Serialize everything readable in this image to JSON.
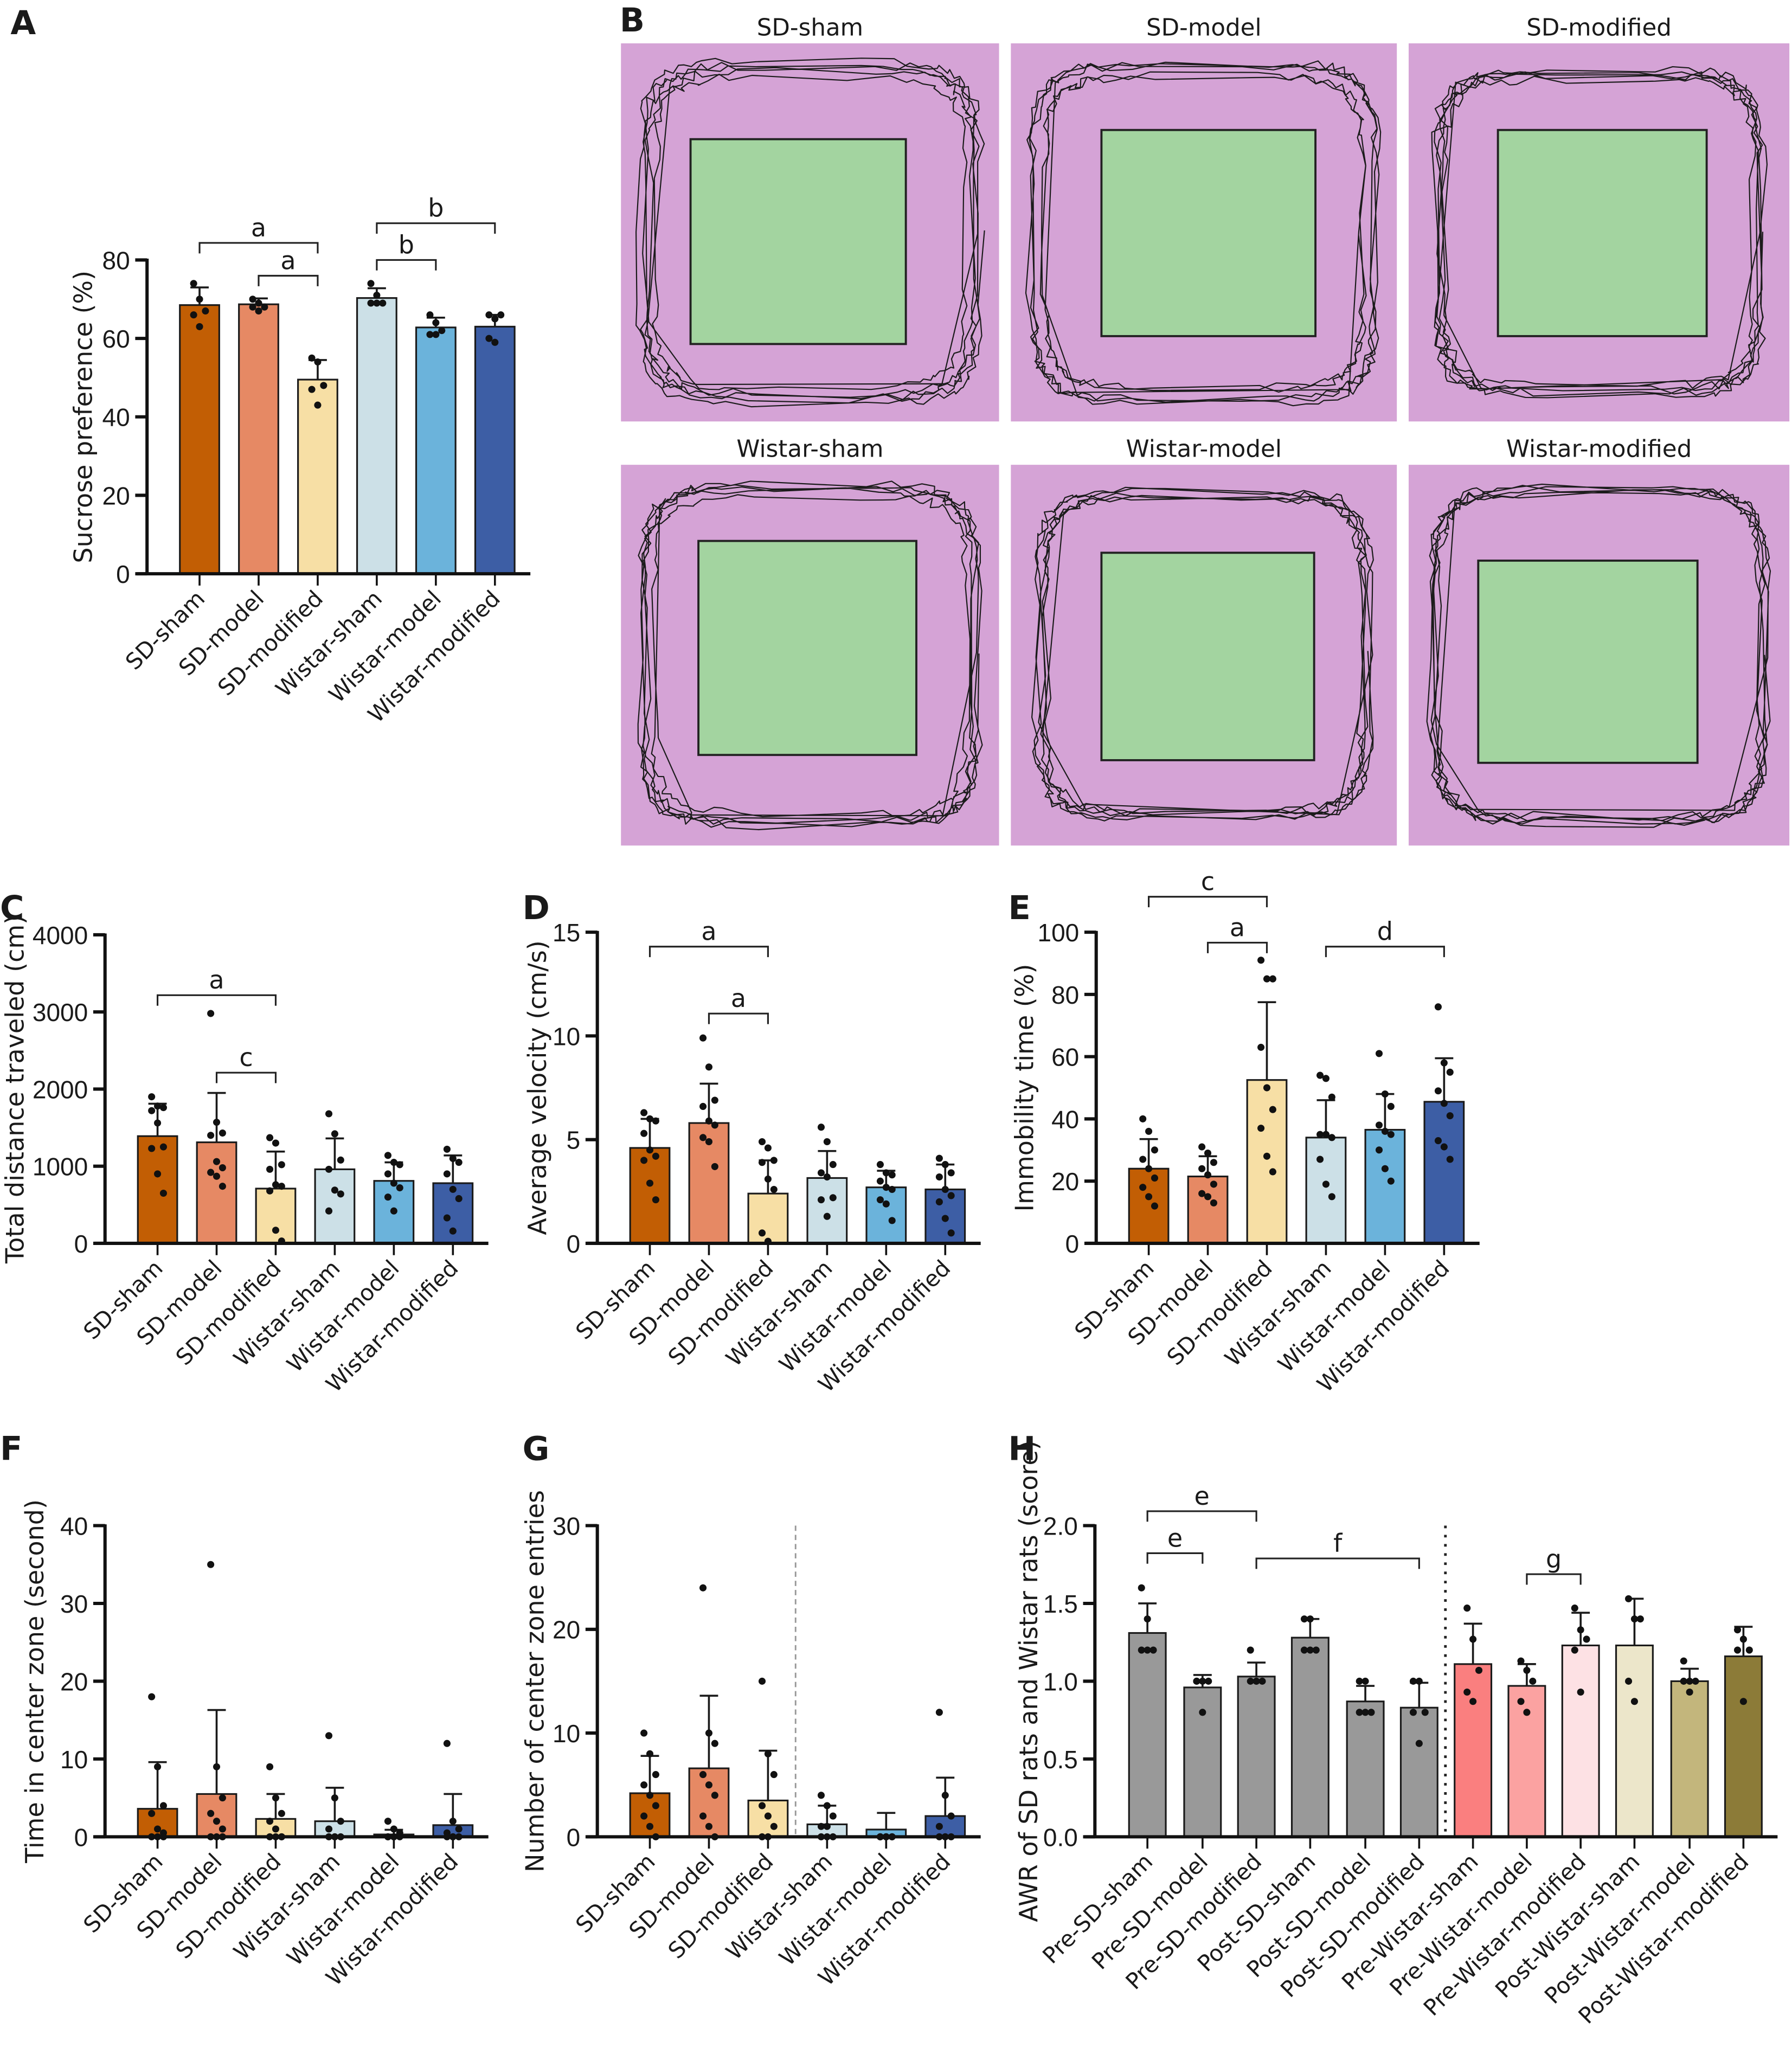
{
  "colors": {
    "SD-sham": "#C25E04",
    "SD-model": "#E68964",
    "SD-modified": "#F7DFA5",
    "Wistar-sham": "#CCE0E7",
    "Wistar-model": "#6BB3DB",
    "Wistar-modified": "#3D5EA5",
    "Pre-Wistar-sham": "#FA7F7F",
    "Pre-Wistar-model": "#FBA2A1",
    "Pre-Wistar-modified": "#FDE1E4",
    "Post-Wistar-sham": "#ECE6CA",
    "Post-Wistar-model": "#C3B67C",
    "Post-Wistar-modified": "#8C7B38",
    "arena": "#D5A3D6",
    "center_zone": "#A3D4A0"
  },
  "panel_b": {
    "label": "B",
    "arenas": [
      {
        "title": "SD-sham"
      },
      {
        "title": "SD-model"
      },
      {
        "title": "SD-modified"
      },
      {
        "title": "Wistar-sham"
      },
      {
        "title": "Wistar-model"
      },
      {
        "title": "Wistar-modified"
      }
    ]
  },
  "chart_data": [
    {
      "panel": "A",
      "type": "bar",
      "ylabel": "Sucrose preference (%)",
      "ylim": [
        0,
        80
      ],
      "yticks": [
        0,
        20,
        40,
        60,
        80
      ],
      "grid": false,
      "categories": [
        "SD-sham",
        "SD-model",
        "SD-modified",
        "Wistar-sham",
        "Wistar-model",
        "Wistar-modified"
      ],
      "means": [
        68.5,
        68.7,
        49.5,
        70.3,
        62.8,
        63.0
      ],
      "sd": [
        4.5,
        1.5,
        5.0,
        2.5,
        2.5,
        3.0
      ],
      "points": [
        [
          74,
          70,
          67,
          66,
          63
        ],
        [
          70,
          69,
          68,
          68,
          67
        ],
        [
          55,
          54,
          48,
          47,
          43
        ],
        [
          74,
          71,
          69,
          69,
          69
        ],
        [
          66,
          64,
          62,
          61,
          61
        ],
        [
          66,
          65,
          66,
          60,
          59
        ]
      ],
      "brackets": [
        {
          "from": 0,
          "to": 2,
          "label": "a"
        },
        {
          "from": 1,
          "to": 2,
          "label": "a"
        },
        {
          "from": 3,
          "to": 5,
          "label": "b"
        },
        {
          "from": 3,
          "to": 4,
          "label": "b"
        }
      ]
    },
    {
      "panel": "C",
      "type": "bar",
      "ylabel": "Total distance traveled (cm)",
      "ylim": [
        0,
        4000
      ],
      "yticks": [
        0,
        1000,
        2000,
        3000,
        4000
      ],
      "grid": false,
      "categories": [
        "SD-sham",
        "SD-model",
        "SD-modified",
        "Wistar-sham",
        "Wistar-model",
        "Wistar-modified"
      ],
      "means": [
        1390,
        1310,
        710,
        960,
        810,
        780
      ],
      "sd": [
        420,
        640,
        480,
        400,
        240,
        360
      ],
      "points": [
        [
          1900,
          1780,
          1760,
          1720,
          1560,
          1250,
          1230,
          900,
          650
        ],
        [
          2980,
          1570,
          1430,
          1400,
          1060,
          980,
          920,
          870,
          740
        ],
        [
          1370,
          1300,
          1020,
          960,
          760,
          740,
          680,
          170,
          30
        ],
        [
          1680,
          1420,
          1080,
          960,
          690,
          640,
          420
        ],
        [
          1140,
          1050,
          1020,
          900,
          780,
          720,
          600,
          420
        ],
        [
          1220,
          1100,
          1050,
          900,
          700,
          580,
          330,
          160
        ]
      ],
      "brackets": [
        {
          "from": 0,
          "to": 2,
          "label": "a"
        },
        {
          "from": 1,
          "to": 2,
          "label": "c"
        }
      ]
    },
    {
      "panel": "D",
      "type": "bar",
      "ylabel": "Average velocity (cm/s)",
      "ylim": [
        0,
        15
      ],
      "yticks": [
        0,
        5,
        10,
        15
      ],
      "grid": false,
      "categories": [
        "SD-sham",
        "SD-model",
        "SD-modified",
        "Wistar-sham",
        "Wistar-model",
        "Wistar-modified"
      ],
      "means": [
        4.6,
        5.8,
        2.4,
        3.15,
        2.7,
        2.6
      ],
      "sd": [
        1.4,
        1.9,
        1.6,
        1.3,
        0.8,
        1.2
      ],
      "points": [
        [
          6.3,
          6.0,
          5.9,
          5.3,
          4.5,
          4.2,
          4.0,
          2.9,
          2.1
        ],
        [
          9.9,
          8.5,
          6.9,
          6.6,
          5.9,
          5.7,
          5.1,
          4.9,
          3.7
        ],
        [
          4.9,
          4.6,
          4.0,
          3.9,
          3.1,
          2.6,
          0.5,
          0.1
        ],
        [
          5.6,
          4.9,
          3.8,
          3.4,
          3.2,
          2.2,
          2.1,
          1.3
        ],
        [
          3.8,
          3.4,
          3.3,
          3.0,
          2.7,
          2.6,
          2.1,
          1.9,
          1.1
        ],
        [
          4.1,
          3.8,
          3.4,
          3.2,
          2.6,
          2.3,
          2.0,
          1.2,
          0.5
        ]
      ],
      "brackets": [
        {
          "from": 0,
          "to": 2,
          "label": "a"
        },
        {
          "from": 1,
          "to": 2,
          "label": "a"
        }
      ]
    },
    {
      "panel": "E",
      "type": "bar",
      "ylabel": "Immobility time (%)",
      "ylim": [
        0,
        100
      ],
      "yticks": [
        0,
        20,
        40,
        60,
        80,
        100
      ],
      "grid": false,
      "categories": [
        "SD-sham",
        "SD-model",
        "SD-modified",
        "Wistar-sham",
        "Wistar-model",
        "Wistar-modified"
      ],
      "means": [
        24,
        21.5,
        52.5,
        34,
        36.5,
        45.5
      ],
      "sd": [
        9.5,
        6.5,
        25,
        12,
        11.5,
        14
      ],
      "points": [
        [
          40,
          36,
          30,
          27,
          24,
          21,
          18,
          15,
          12
        ],
        [
          31,
          29,
          26,
          24,
          22,
          19,
          16,
          15,
          13
        ],
        [
          91,
          85,
          85,
          63,
          50,
          43,
          37,
          28,
          23
        ],
        [
          54,
          53,
          47,
          35,
          35,
          34,
          27,
          19,
          15
        ],
        [
          61,
          48,
          44,
          38,
          36,
          35,
          30,
          24,
          20
        ],
        [
          76,
          58,
          55,
          49,
          45,
          41,
          33,
          31,
          27
        ]
      ],
      "brackets": [
        {
          "from": 0,
          "to": 2,
          "label": "c"
        },
        {
          "from": 1,
          "to": 2,
          "label": "a"
        },
        {
          "from": 3,
          "to": 5,
          "label": "d"
        }
      ]
    },
    {
      "panel": "F",
      "type": "bar",
      "ylabel": "Time in center zone (second)",
      "ylim": [
        0,
        40
      ],
      "yticks": [
        0,
        10,
        20,
        30,
        40
      ],
      "grid": false,
      "categories": [
        "SD-sham",
        "SD-model",
        "SD-modified",
        "Wistar-sham",
        "Wistar-model",
        "Wistar-modified"
      ],
      "means": [
        3.6,
        5.5,
        2.3,
        2.0,
        0.3,
        1.5
      ],
      "sd": [
        6.0,
        10.8,
        3.2,
        4.3,
        0.6,
        4.0
      ],
      "points": [
        [
          18,
          9,
          4,
          3,
          1,
          0.5,
          0,
          0,
          0
        ],
        [
          35,
          9,
          5,
          3,
          2,
          1,
          0,
          0,
          0
        ],
        [
          9,
          5,
          3,
          2,
          1,
          0,
          0,
          0,
          0
        ],
        [
          13,
          5,
          2,
          1,
          0,
          0,
          0,
          0
        ],
        [
          2,
          1,
          0.5,
          0,
          0,
          0,
          0,
          0
        ],
        [
          12,
          2,
          1,
          0.5,
          0,
          0,
          0,
          0
        ]
      ],
      "brackets": []
    },
    {
      "panel": "G",
      "type": "bar",
      "ylabel": "Number of center zone entries",
      "ylim": [
        0,
        30
      ],
      "yticks": [
        0,
        10,
        20,
        30
      ],
      "grid": false,
      "categories": [
        "SD-sham",
        "SD-model",
        "SD-modified",
        "Wistar-sham",
        "Wistar-model",
        "Wistar-modified"
      ],
      "means": [
        4.2,
        6.6,
        3.5,
        1.2,
        0.7,
        2.0
      ],
      "sd": [
        3.6,
        7.0,
        4.8,
        1.8,
        1.6,
        3.7
      ],
      "points": [
        [
          10,
          8,
          6,
          5,
          4,
          3,
          2,
          1,
          0
        ],
        [
          24,
          10,
          9,
          6,
          5,
          4,
          2,
          1,
          0
        ],
        [
          15,
          8,
          6,
          3,
          2,
          1,
          0,
          0
        ],
        [
          4,
          3,
          2,
          1,
          1,
          0,
          0,
          0
        ],
        [
          0,
          0,
          0,
          0,
          0,
          0,
          0,
          0
        ],
        [
          12,
          4,
          2,
          1,
          0,
          0,
          0,
          0
        ]
      ],
      "brackets": [],
      "divider_after": 2,
      "divider_style": "dashed"
    },
    {
      "panel": "H",
      "type": "bar",
      "ylabel": "AWR of SD rats and Wistar rats (score)",
      "ylim": [
        0,
        2.0
      ],
      "yticks": [
        "0.0",
        "0.5",
        "1.0",
        "1.5",
        "2.0"
      ],
      "grid": false,
      "categories": [
        "Pre-SD-sham",
        "Pre-SD-model",
        "Pre-SD-modified",
        "Post-SD-sham",
        "Post-SD-model",
        "Post-SD-modified",
        "Pre-Wistar-sham",
        "Pre-Wistar-model",
        "Pre-Wistar-modified",
        "Post-Wistar-sham",
        "Post-Wistar-model",
        "Post-Wistar-modified"
      ],
      "means": [
        1.31,
        0.96,
        1.03,
        1.28,
        0.87,
        0.83,
        1.11,
        0.97,
        1.23,
        1.23,
        1.0,
        1.16
      ],
      "sd": [
        0.19,
        0.08,
        0.09,
        0.12,
        0.1,
        0.16,
        0.26,
        0.14,
        0.21,
        0.3,
        0.08,
        0.19
      ],
      "points": [
        [
          1.6,
          1.4,
          1.2,
          1.2,
          1.2
        ],
        [
          1.0,
          1.0,
          1.0,
          1.0,
          0.8
        ],
        [
          1.2,
          1.0,
          1.0,
          1.0,
          1.0
        ],
        [
          1.4,
          1.4,
          1.2,
          1.2,
          1.2
        ],
        [
          1.0,
          1.0,
          0.8,
          0.8,
          0.8
        ],
        [
          1.0,
          1.0,
          0.8,
          0.8,
          0.6
        ],
        [
          1.47,
          1.27,
          1.07,
          0.93,
          0.87
        ],
        [
          1.13,
          1.07,
          1.0,
          0.87,
          0.8
        ],
        [
          1.47,
          1.33,
          1.27,
          1.2,
          0.93
        ],
        [
          1.53,
          1.4,
          1.4,
          1.0,
          0.87
        ],
        [
          1.13,
          1.0,
          1.0,
          1.0,
          0.93
        ],
        [
          1.33,
          1.27,
          1.2,
          1.2,
          0.87
        ]
      ],
      "brackets": [
        {
          "from": 0,
          "to": 2,
          "label": "e"
        },
        {
          "from": 0,
          "to": 1,
          "label": "e"
        },
        {
          "from": 2,
          "to": 5,
          "label": "f"
        },
        {
          "from": 7,
          "to": 8,
          "label": "g"
        }
      ],
      "divider_after": 5,
      "divider_style": "dotted"
    }
  ]
}
